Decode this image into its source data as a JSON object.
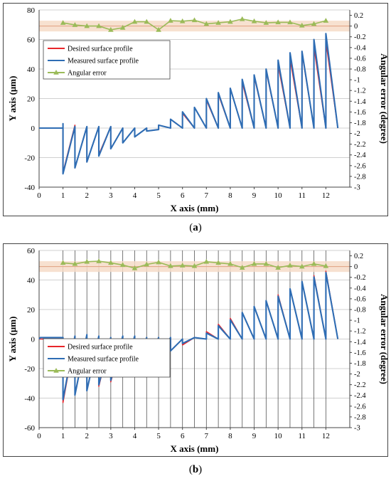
{
  "chart_data": [
    {
      "panel": "a",
      "caption": "a",
      "type": "line",
      "xlabel": "X axis (mm)",
      "ylabel": "Y axis (μm)",
      "y2label": "Angular error (degree)",
      "xlim": [
        0,
        13
      ],
      "xticks": [
        0,
        1,
        2,
        3,
        4,
        5,
        6,
        7,
        8,
        9,
        10,
        11,
        12
      ],
      "ylim": [
        -40,
        80
      ],
      "yticks": [
        -40,
        -20,
        0,
        20,
        40,
        60,
        80
      ],
      "y2lim": [
        -3,
        0.3
      ],
      "y2ticks": [
        -3,
        -2.8,
        -2.6,
        -2.4,
        -2.2,
        -2,
        -1.8,
        -1.6,
        -1.4,
        -1.2,
        -1,
        -0.8,
        -0.6,
        -0.4,
        -0.2,
        0,
        0.2
      ],
      "y2ticklabels": [
        "-3",
        "-2.8",
        "-2.6",
        "-2.4",
        "-2.2",
        "-2",
        "-1.8",
        "-1.6",
        "-1.4",
        "-1.2",
        "-1",
        "-0.8",
        "-0.6",
        "-0.4",
        "-0.2",
        "0",
        "0.2"
      ],
      "vertical_gridlines": false,
      "legend_position": "upper-left",
      "band": {
        "y2_from": -0.1,
        "y2_to": 0.1
      },
      "series": [
        {
          "name": "Desired surface profile",
          "color": "#e8262a",
          "axis": "left",
          "start": [
            [
              0,
              0
            ],
            [
              1,
              0
            ]
          ],
          "teeth": [
            [
              1.0,
              -30,
              1.5,
              2
            ],
            [
              1.5,
              -27,
              2.0,
              1
            ],
            [
              2.0,
              -23,
              2.5,
              1
            ],
            [
              2.5,
              -18,
              3.0,
              1
            ],
            [
              3.0,
              -14,
              3.5,
              0
            ],
            [
              3.5,
              -10,
              4.0,
              0
            ],
            [
              4.0,
              -6,
              4.5,
              0
            ],
            [
              4.5,
              -2,
              5.0,
              -1
            ],
            [
              5.0,
              2,
              5.5,
              0
            ],
            [
              5.5,
              6,
              6.0,
              0
            ],
            [
              6.0,
              10,
              6.5,
              0
            ],
            [
              6.5,
              14,
              7.0,
              0
            ],
            [
              7.0,
              19,
              7.5,
              0
            ],
            [
              7.5,
              23,
              8.0,
              0
            ],
            [
              8.0,
              27,
              8.5,
              0
            ],
            [
              8.5,
              31,
              9.0,
              0
            ],
            [
              9.0,
              35,
              9.5,
              0
            ],
            [
              9.5,
              39,
              10.0,
              0
            ],
            [
              10.0,
              43,
              10.5,
              0
            ],
            [
              10.5,
              47,
              11.0,
              0
            ],
            [
              11.0,
              51,
              11.5,
              0
            ],
            [
              11.5,
              55,
              12.0,
              0
            ],
            [
              12.0,
              59,
              12.5,
              0
            ]
          ]
        },
        {
          "name": "Measured surface profile",
          "color": "#2e6db4",
          "axis": "left",
          "start": [
            [
              0,
              0
            ],
            [
              1,
              0
            ],
            [
              1,
              3
            ]
          ],
          "teeth": [
            [
              1.0,
              -31,
              1.5,
              1
            ],
            [
              1.5,
              -27,
              2.0,
              1
            ],
            [
              2.0,
              -23,
              2.5,
              1
            ],
            [
              2.5,
              -19,
              3.0,
              1
            ],
            [
              3.0,
              -14,
              3.5,
              0
            ],
            [
              3.5,
              -10,
              4.0,
              0
            ],
            [
              4.0,
              -6,
              4.5,
              0
            ],
            [
              4.5,
              -2,
              5.0,
              -1
            ],
            [
              5.0,
              2,
              5.5,
              0
            ],
            [
              5.5,
              6,
              6.0,
              0
            ],
            [
              6.0,
              11,
              6.5,
              0
            ],
            [
              6.5,
              14,
              7.0,
              0
            ],
            [
              7.0,
              20,
              7.5,
              0
            ],
            [
              7.5,
              24,
              8.0,
              0
            ],
            [
              8.0,
              27,
              8.5,
              0
            ],
            [
              8.5,
              33,
              9.0,
              0
            ],
            [
              9.0,
              36,
              9.5,
              0
            ],
            [
              9.5,
              40,
              10.0,
              0
            ],
            [
              10.0,
              46,
              10.5,
              0
            ],
            [
              10.5,
              51,
              11.0,
              0
            ],
            [
              11.0,
              52,
              11.5,
              0
            ],
            [
              11.5,
              60,
              12.0,
              0
            ],
            [
              12.0,
              64,
              12.5,
              0
            ]
          ]
        },
        {
          "name": "Angular error",
          "color": "#9bbb59",
          "axis": "right",
          "marker": "triangle",
          "x": [
            1,
            1.5,
            2,
            2.5,
            3,
            3.5,
            4,
            4.5,
            5,
            5.5,
            6,
            6.5,
            7,
            7.5,
            8,
            8.5,
            9,
            9.5,
            10,
            10.5,
            11,
            11.5,
            12
          ],
          "values": [
            0.06,
            0.02,
            0.0,
            0.0,
            -0.07,
            -0.03,
            0.08,
            0.08,
            -0.07,
            0.1,
            0.09,
            0.11,
            0.04,
            0.06,
            0.08,
            0.13,
            0.09,
            0.06,
            0.07,
            0.07,
            0.01,
            0.04,
            0.1
          ]
        }
      ]
    },
    {
      "panel": "b",
      "caption": "b",
      "type": "line",
      "xlabel": "X axis (mm)",
      "ylabel": "Y axis (μm)",
      "y2label": "Angular error (degree)",
      "xlim": [
        0,
        13
      ],
      "xticks": [
        0,
        1,
        2,
        3,
        4,
        5,
        6,
        7,
        8,
        9,
        10,
        11,
        12
      ],
      "ylim": [
        -60,
        60
      ],
      "yticks": [
        -60,
        -40,
        -20,
        0,
        20,
        40,
        60
      ],
      "y2lim": [
        -3,
        0.3
      ],
      "y2ticks": [
        -3,
        -2.8,
        -2.6,
        -2.4,
        -2.2,
        -2,
        -1.8,
        -1.6,
        -1.4,
        -1.2,
        -1,
        -0.8,
        -0.6,
        -0.4,
        -0.2,
        0,
        0.2
      ],
      "y2ticklabels": [
        "-3",
        "-2.8",
        "-2.6",
        "-2.4",
        "-2.2",
        "-2",
        "-1.8",
        "-1.6",
        "-1.4",
        "-1.2",
        "-1",
        "-0.8",
        "-0.6",
        "-0.4",
        "-0.2",
        "0",
        "0.2"
      ],
      "vertical_gridlines": true,
      "vgrid_x": [
        1,
        1.5,
        2,
        2.5,
        3,
        3.5,
        4,
        4.5,
        5,
        5.5,
        6,
        6.5,
        7,
        7.5,
        8,
        8.5,
        9,
        9.5,
        10,
        10.5,
        11,
        11.5,
        12
      ],
      "legend_position": "left-middle",
      "band": {
        "y2_from": -0.1,
        "y2_to": 0.1
      },
      "series": [
        {
          "name": "Desired surface profile",
          "color": "#e8262a",
          "axis": "left",
          "start": [
            [
              0,
              0
            ],
            [
              1,
              0
            ]
          ],
          "teeth": [
            [
              1.0,
              -43,
              1.5,
              2
            ],
            [
              1.5,
              -38,
              2.0,
              2
            ],
            [
              2.0,
              -35,
              2.5,
              1
            ],
            [
              2.5,
              -32,
              3.0,
              1
            ],
            [
              3.0,
              -29,
              3.5,
              1
            ],
            [
              3.5,
              -25,
              4.0,
              1
            ],
            [
              4.0,
              -21,
              4.5,
              1
            ],
            [
              4.5,
              -17,
              5.0,
              1
            ],
            [
              5.0,
              -13,
              5.5,
              1
            ],
            [
              5.5,
              -8,
              6.0,
              0
            ],
            [
              6.0,
              -4,
              6.5,
              1
            ],
            [
              6.5,
              1,
              7.0,
              0
            ],
            [
              7.0,
              5,
              7.5,
              0
            ],
            [
              7.5,
              10,
              8.0,
              0
            ],
            [
              8.0,
              14,
              8.5,
              0
            ],
            [
              8.5,
              18,
              9.0,
              0
            ],
            [
              9.0,
              22,
              9.5,
              0
            ],
            [
              9.5,
              26,
              10.0,
              0
            ],
            [
              10.0,
              30,
              10.5,
              0
            ],
            [
              10.5,
              34,
              11.0,
              0
            ],
            [
              11.0,
              39,
              11.5,
              0
            ],
            [
              11.5,
              43,
              12.0,
              0
            ],
            [
              12.0,
              46,
              12.5,
              0
            ]
          ]
        },
        {
          "name": "Measured surface profile",
          "color": "#2e6db4",
          "axis": "left",
          "start": [
            [
              0,
              0
            ],
            [
              0.05,
              1
            ],
            [
              1,
              1
            ]
          ],
          "teeth": [
            [
              1.0,
              -41,
              1.5,
              2
            ],
            [
              1.5,
              -38,
              2.0,
              3
            ],
            [
              2.0,
              -35,
              2.5,
              2
            ],
            [
              2.5,
              -31,
              3.0,
              1
            ],
            [
              3.0,
              -28,
              3.5,
              2
            ],
            [
              3.5,
              -25,
              4.0,
              2
            ],
            [
              4.0,
              -21,
              4.5,
              1
            ],
            [
              4.5,
              -17,
              5.0,
              1
            ],
            [
              5.0,
              -13,
              5.5,
              1
            ],
            [
              5.5,
              -8,
              6.0,
              0
            ],
            [
              6.0,
              -3,
              6.5,
              1
            ],
            [
              6.5,
              1,
              7.0,
              0
            ],
            [
              7.0,
              4,
              7.5,
              0
            ],
            [
              7.5,
              9,
              8.0,
              0
            ],
            [
              8.0,
              13,
              8.5,
              0
            ],
            [
              8.5,
              18,
              9.0,
              0
            ],
            [
              9.0,
              22,
              9.5,
              0
            ],
            [
              9.5,
              26,
              10.0,
              0
            ],
            [
              10.0,
              29,
              10.5,
              0
            ],
            [
              10.5,
              34,
              11.0,
              0
            ],
            [
              11.0,
              39,
              11.5,
              0
            ],
            [
              11.5,
              42,
              12.0,
              0
            ],
            [
              12.0,
              45,
              12.5,
              0
            ]
          ]
        },
        {
          "name": "Angular error",
          "color": "#9bbb59",
          "axis": "right",
          "marker": "triangle",
          "x": [
            1,
            1.5,
            2,
            2.5,
            3,
            3.5,
            4,
            4.5,
            5,
            5.5,
            6,
            6.5,
            7,
            7.5,
            8,
            8.5,
            9,
            9.5,
            10,
            10.5,
            11,
            11.5,
            12
          ],
          "values": [
            0.07,
            0.05,
            0.09,
            0.1,
            0.07,
            0.03,
            -0.03,
            0.04,
            0.08,
            0.01,
            0.02,
            0.01,
            0.09,
            0.07,
            0.05,
            -0.02,
            0.05,
            0.05,
            -0.02,
            0.02,
            0.0,
            0.05,
            0.01
          ]
        }
      ]
    }
  ],
  "captions": {
    "a": "a",
    "b": "b"
  }
}
